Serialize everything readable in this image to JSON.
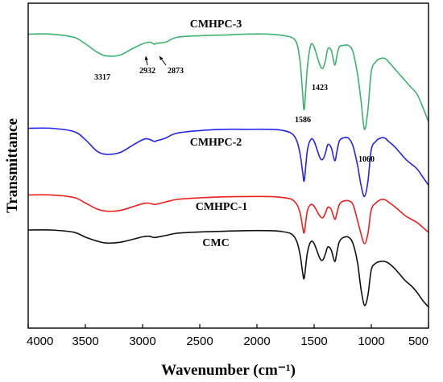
{
  "chart_data": {
    "type": "line",
    "xlabel": "Wavenumber (cm⁻¹)",
    "ylabel": "Transmittance",
    "xlim": [
      4000,
      500
    ],
    "x_reversed": true,
    "x_ticks": [
      4000,
      3500,
      3000,
      2500,
      2000,
      1500,
      1000,
      500
    ],
    "y_ticks_shown": false,
    "grid": false,
    "series": [
      {
        "name": "CMHPC-3",
        "color": "#3cb371",
        "x": [
          4000,
          3800,
          3600,
          3500,
          3400,
          3317,
          3200,
          3100,
          3000,
          2932,
          2900,
          2873,
          2800,
          2700,
          2500,
          2300,
          2100,
          1900,
          1800,
          1700,
          1650,
          1620,
          1600,
          1586,
          1560,
          1530,
          1500,
          1450,
          1423,
          1400,
          1380,
          1350,
          1320,
          1300,
          1280,
          1250,
          1200,
          1160,
          1120,
          1090,
          1060,
          1030,
          1000,
          960,
          920,
          880,
          850,
          800,
          750,
          700,
          650,
          600,
          550,
          500
        ],
        "values": [
          0.905,
          0.905,
          0.895,
          0.875,
          0.85,
          0.838,
          0.84,
          0.858,
          0.875,
          0.88,
          0.874,
          0.877,
          0.88,
          0.895,
          0.9,
          0.902,
          0.905,
          0.905,
          0.902,
          0.895,
          0.875,
          0.81,
          0.72,
          0.675,
          0.8,
          0.87,
          0.865,
          0.81,
          0.8,
          0.825,
          0.86,
          0.855,
          0.81,
          0.84,
          0.865,
          0.87,
          0.87,
          0.85,
          0.78,
          0.7,
          0.612,
          0.67,
          0.79,
          0.82,
          0.83,
          0.83,
          0.82,
          0.8,
          0.78,
          0.76,
          0.74,
          0.72,
          0.68,
          0.635
        ]
      },
      {
        "name": "CMHPC-2",
        "color": "#2424ee",
        "x": [
          4000,
          3800,
          3600,
          3500,
          3400,
          3317,
          3200,
          3100,
          3000,
          2950,
          2900,
          2873,
          2800,
          2700,
          2500,
          2300,
          2100,
          1900,
          1800,
          1700,
          1650,
          1620,
          1600,
          1586,
          1560,
          1530,
          1500,
          1450,
          1423,
          1400,
          1380,
          1350,
          1320,
          1300,
          1280,
          1250,
          1200,
          1160,
          1120,
          1090,
          1060,
          1030,
          1000,
          960,
          920,
          880,
          850,
          800,
          750,
          700,
          650,
          600,
          550,
          500
        ],
        "values": [
          0.615,
          0.615,
          0.605,
          0.58,
          0.545,
          0.535,
          0.54,
          0.56,
          0.58,
          0.582,
          0.575,
          0.577,
          0.585,
          0.6,
          0.608,
          0.612,
          0.612,
          0.612,
          0.61,
          0.6,
          0.575,
          0.53,
          0.48,
          0.455,
          0.545,
          0.58,
          0.575,
          0.525,
          0.52,
          0.54,
          0.565,
          0.555,
          0.515,
          0.545,
          0.575,
          0.585,
          0.585,
          0.56,
          0.5,
          0.44,
          0.405,
          0.45,
          0.55,
          0.575,
          0.585,
          0.585,
          0.575,
          0.56,
          0.54,
          0.52,
          0.505,
          0.49,
          0.465,
          0.44
        ]
      },
      {
        "name": "CMHPC-1",
        "color": "#ee2020",
        "x": [
          4000,
          3800,
          3600,
          3500,
          3400,
          3317,
          3200,
          3100,
          3000,
          2950,
          2900,
          2873,
          2800,
          2700,
          2500,
          2300,
          2100,
          1900,
          1800,
          1700,
          1650,
          1620,
          1600,
          1586,
          1560,
          1530,
          1500,
          1450,
          1423,
          1400,
          1380,
          1350,
          1320,
          1300,
          1280,
          1250,
          1200,
          1160,
          1120,
          1090,
          1060,
          1030,
          1000,
          960,
          920,
          880,
          850,
          800,
          750,
          700,
          650,
          600,
          550,
          500
        ],
        "values": [
          0.41,
          0.41,
          0.402,
          0.385,
          0.367,
          0.36,
          0.362,
          0.372,
          0.383,
          0.385,
          0.381,
          0.382,
          0.388,
          0.396,
          0.401,
          0.404,
          0.405,
          0.405,
          0.403,
          0.397,
          0.38,
          0.35,
          0.31,
          0.295,
          0.36,
          0.38,
          0.375,
          0.345,
          0.34,
          0.355,
          0.372,
          0.365,
          0.335,
          0.355,
          0.38,
          0.39,
          0.392,
          0.38,
          0.33,
          0.29,
          0.26,
          0.29,
          0.365,
          0.385,
          0.395,
          0.395,
          0.388,
          0.375,
          0.36,
          0.345,
          0.335,
          0.325,
          0.31,
          0.295
        ]
      },
      {
        "name": "CMC",
        "color": "#111111",
        "x": [
          4000,
          3800,
          3600,
          3500,
          3400,
          3317,
          3200,
          3100,
          3000,
          2950,
          2900,
          2873,
          2800,
          2700,
          2500,
          2300,
          2100,
          1900,
          1800,
          1700,
          1650,
          1620,
          1600,
          1586,
          1560,
          1530,
          1500,
          1450,
          1423,
          1400,
          1380,
          1350,
          1320,
          1300,
          1280,
          1250,
          1200,
          1160,
          1120,
          1090,
          1060,
          1030,
          1000,
          960,
          920,
          880,
          850,
          800,
          750,
          700,
          650,
          600,
          550,
          500
        ],
        "values": [
          0.302,
          0.302,
          0.295,
          0.28,
          0.268,
          0.262,
          0.264,
          0.272,
          0.281,
          0.283,
          0.279,
          0.28,
          0.285,
          0.292,
          0.296,
          0.298,
          0.3,
          0.3,
          0.298,
          0.29,
          0.265,
          0.22,
          0.17,
          0.155,
          0.23,
          0.265,
          0.26,
          0.215,
          0.21,
          0.23,
          0.25,
          0.24,
          0.205,
          0.235,
          0.265,
          0.278,
          0.28,
          0.26,
          0.2,
          0.12,
          0.07,
          0.1,
          0.18,
          0.2,
          0.205,
          0.205,
          0.2,
          0.185,
          0.165,
          0.145,
          0.13,
          0.11,
          0.085,
          0.065
        ]
      }
    ],
    "annotations": [
      {
        "text": "3317",
        "x": 3317
      },
      {
        "text": "2932",
        "x": 2932
      },
      {
        "text": "2873",
        "x": 2873
      },
      {
        "text": "1423",
        "x": 1423
      },
      {
        "text": "1586",
        "x": 1586
      },
      {
        "text": "1060",
        "x": 1060
      }
    ]
  }
}
